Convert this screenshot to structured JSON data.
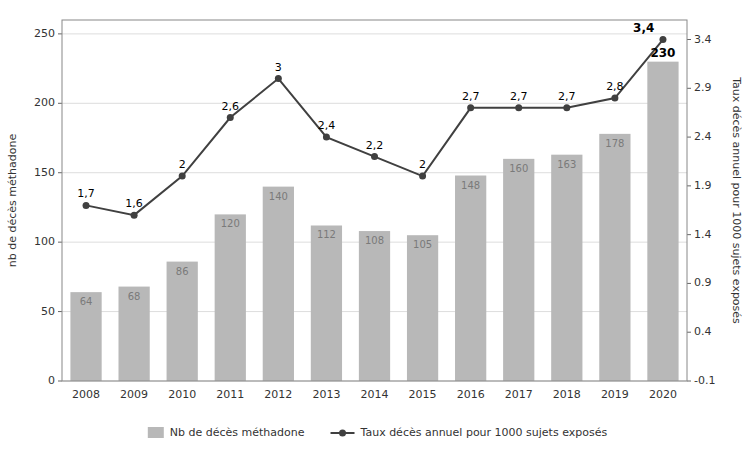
{
  "chart_data": {
    "type": "bar",
    "categories": [
      "2008",
      "2009",
      "2010",
      "2011",
      "2012",
      "2013",
      "2014",
      "2015",
      "2016",
      "2017",
      "2018",
      "2019",
      "2020"
    ],
    "series": [
      {
        "name": "Nb de décès méthadone",
        "type": "bar",
        "color": "#b8b8b8",
        "values": [
          64,
          68,
          86,
          120,
          140,
          112,
          108,
          105,
          148,
          160,
          163,
          178,
          230
        ],
        "data_labels": true
      },
      {
        "name": "Taux décès annuel pour 1000 sujets exposés",
        "type": "line",
        "axis": "y2",
        "color": "#404040",
        "marker": "circle",
        "values": [
          1.7,
          1.6,
          2.0,
          2.6,
          3.0,
          2.4,
          2.2,
          2.0,
          2.7,
          2.7,
          2.7,
          2.8,
          3.4
        ],
        "value_labels": [
          "1,7",
          "1,6",
          "2",
          "2,6",
          "3",
          "2,4",
          "2,2",
          "2",
          "2,7",
          "2,7",
          "2,7",
          "2,8",
          "3,4"
        ],
        "data_labels": true
      }
    ],
    "y_label": "nb de décès méthadone",
    "y2_label": "Taux décès annuel pour 1000 sujets exposés",
    "ylim": [
      0,
      260
    ],
    "yticks": [
      0,
      50,
      100,
      150,
      200,
      250
    ],
    "y2lim": [
      -0.1,
      3.6
    ],
    "y2ticks": [
      -0.1,
      0.4,
      0.9,
      1.4,
      1.9,
      2.4,
      2.9,
      3.4
    ],
    "grid": true,
    "legend": "bottom"
  }
}
